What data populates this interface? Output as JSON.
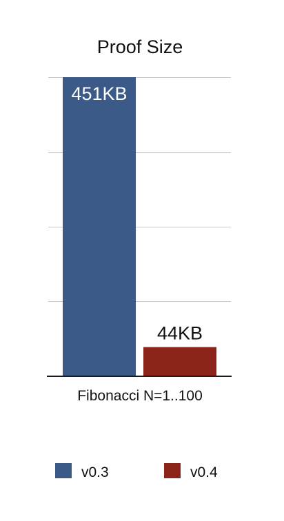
{
  "chart_data": {
    "type": "bar",
    "title": "Proof Size",
    "categories": [
      "Fibonacci N=1..100"
    ],
    "series": [
      {
        "name": "v0.3",
        "values": [
          451
        ],
        "data_label": "451KB",
        "color": "#3b5a88"
      },
      {
        "name": "v0.4",
        "values": [
          44
        ],
        "data_label": "44KB",
        "color": "#8b2418"
      }
    ],
    "unit": "KB",
    "xlabel": "",
    "ylabel": "",
    "ylim": [
      0,
      451
    ],
    "y_gridlines": [
      0,
      113,
      226,
      338,
      451
    ],
    "grid": true,
    "y_tick_labels_visible": false,
    "legend": "bottom",
    "colors": {
      "gridline": "#c8c8c8",
      "axis": "#1a1a1a"
    }
  }
}
